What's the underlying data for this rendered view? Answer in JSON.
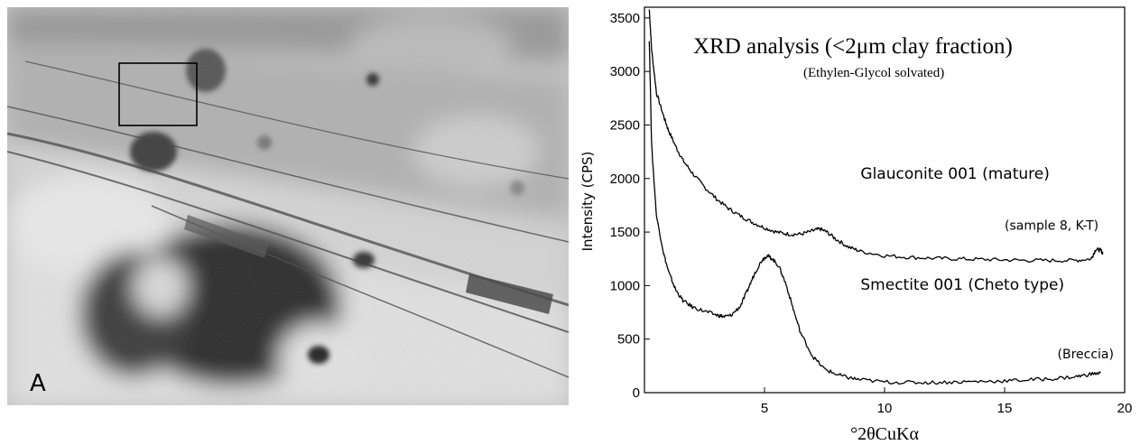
{
  "panel_label": "A",
  "chart_data": {
    "type": "line",
    "title": "XRD analysis (<2μm clay fraction)",
    "subtitle": "(Ethylen-Glycol solvated)",
    "xlabel": "°2θCuKα",
    "ylabel": "Intensity (CPS)",
    "xlim": [
      0,
      20
    ],
    "ylim": [
      0,
      3600
    ],
    "x_ticks": [
      5,
      10,
      15,
      20
    ],
    "y_ticks": [
      0,
      500,
      1000,
      1500,
      2000,
      2500,
      3000,
      3500
    ],
    "grid": false,
    "annotations": [
      {
        "text": "Glauconite 001 (mature)",
        "x": 9.0,
        "y": 2000,
        "size": "large"
      },
      {
        "text": "(sample 8, K-T)",
        "x": 15.0,
        "y": 1520,
        "size": "small"
      },
      {
        "text": "Smectite 001 (Cheto type)",
        "x": 9.0,
        "y": 960,
        "size": "large"
      },
      {
        "text": "(Breccia)",
        "x": 17.2,
        "y": 320,
        "size": "small"
      }
    ],
    "series": [
      {
        "x": [
          0.2,
          0.3,
          0.5,
          0.8,
          1.0,
          1.3,
          1.6,
          2.0,
          2.5,
          3.0,
          3.5,
          4.0,
          4.5,
          5.0,
          5.5,
          6.0,
          6.5,
          7.0,
          7.3,
          7.6,
          8.0,
          8.5,
          9.0,
          10.0,
          11.0,
          12.0,
          13.0,
          14.0,
          15.0,
          16.0,
          17.0,
          18.0,
          18.6,
          18.8,
          19.0,
          19.1
        ],
        "y": [
          3580,
          3200,
          2800,
          2580,
          2450,
          2300,
          2170,
          2050,
          1920,
          1810,
          1720,
          1650,
          1590,
          1540,
          1500,
          1480,
          1480,
          1510,
          1530,
          1500,
          1430,
          1360,
          1320,
          1280,
          1265,
          1255,
          1250,
          1245,
          1240,
          1235,
          1235,
          1235,
          1250,
          1340,
          1330,
          1300
        ]
      },
      {
        "x": [
          0.2,
          0.3,
          0.5,
          0.8,
          1.0,
          1.3,
          1.6,
          2.0,
          2.5,
          3.0,
          3.3,
          3.6,
          4.0,
          4.3,
          4.6,
          4.9,
          5.1,
          5.3,
          5.6,
          5.9,
          6.2,
          6.5,
          7.0,
          7.5,
          8.0,
          8.5,
          9.0,
          10.0,
          11.0,
          12.0,
          13.0,
          14.0,
          15.0,
          16.0,
          17.0,
          18.0,
          18.5,
          19.0
        ],
        "y": [
          3300,
          2300,
          1650,
          1300,
          1130,
          960,
          860,
          800,
          760,
          725,
          710,
          720,
          810,
          960,
          1120,
          1240,
          1280,
          1255,
          1180,
          1010,
          780,
          560,
          340,
          220,
          170,
          140,
          120,
          100,
          95,
          95,
          100,
          105,
          110,
          120,
          130,
          150,
          170,
          185
        ]
      }
    ]
  }
}
